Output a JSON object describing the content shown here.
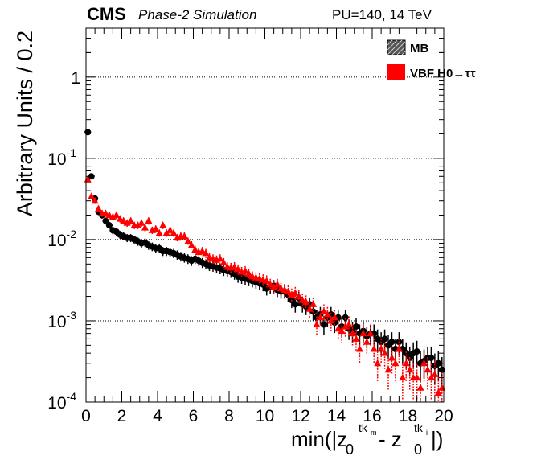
{
  "header": {
    "experiment": "CMS",
    "status": "Phase-2 Simulation",
    "conditions": "PU=140, 14 TeV"
  },
  "chart_data": {
    "type": "scatter",
    "title": "",
    "xlabel": "min(|z0tkm - z0tki|)",
    "ylabel": "Arbitrary Units / 0.2",
    "xlim": [
      0,
      20
    ],
    "ylim": [
      0.0001,
      4
    ],
    "yscale": "log",
    "grid": "horizontal dotted at decades",
    "legend_position": "top-right",
    "x_ticks": [
      "0",
      "2",
      "4",
      "6",
      "8",
      "10",
      "12",
      "14",
      "16",
      "18",
      "20"
    ],
    "y_ticks": [
      {
        "value": 0.0001,
        "base": "10",
        "exp": "-4"
      },
      {
        "value": 0.001,
        "base": "10",
        "exp": "-3"
      },
      {
        "value": 0.01,
        "base": "10",
        "exp": "-2"
      },
      {
        "value": 0.1,
        "base": "10",
        "exp": "-1"
      },
      {
        "value": 1,
        "base": "1",
        "exp": ""
      }
    ],
    "series": [
      {
        "name": "MB",
        "marker": "circle",
        "color": "#000000",
        "x": [
          0.1,
          0.3,
          0.5,
          0.7,
          0.9,
          1.1,
          1.3,
          1.5,
          1.7,
          1.9,
          2.1,
          2.3,
          2.5,
          2.7,
          2.9,
          3.1,
          3.3,
          3.5,
          3.7,
          3.9,
          4.1,
          4.3,
          4.5,
          4.7,
          4.9,
          5.1,
          5.3,
          5.5,
          5.7,
          5.9,
          6.1,
          6.3,
          6.5,
          6.7,
          6.9,
          7.1,
          7.3,
          7.5,
          7.7,
          7.9,
          8.1,
          8.3,
          8.5,
          8.7,
          8.9,
          9.1,
          9.3,
          9.5,
          9.7,
          9.9,
          10.1,
          10.3,
          10.5,
          10.7,
          10.9,
          11.1,
          11.3,
          11.5,
          11.7,
          11.9,
          12.1,
          12.3,
          12.5,
          12.7,
          12.9,
          13.1,
          13.3,
          13.5,
          13.7,
          13.9,
          14.1,
          14.3,
          14.5,
          14.7,
          14.9,
          15.1,
          15.3,
          15.5,
          15.7,
          15.9,
          16.1,
          16.3,
          16.5,
          16.7,
          16.9,
          17.1,
          17.3,
          17.5,
          17.7,
          17.9,
          18.1,
          18.3,
          18.5,
          18.7,
          18.9,
          19.1,
          19.3,
          19.5,
          19.7,
          19.9
        ],
        "y": [
          0.21,
          0.06,
          0.032,
          0.022,
          0.02,
          0.017,
          0.015,
          0.013,
          0.0125,
          0.0115,
          0.011,
          0.0105,
          0.0105,
          0.01,
          0.0095,
          0.009,
          0.0092,
          0.0085,
          0.0082,
          0.0078,
          0.0078,
          0.0072,
          0.0072,
          0.007,
          0.0068,
          0.0065,
          0.0062,
          0.006,
          0.0058,
          0.0055,
          0.0058,
          0.0055,
          0.0052,
          0.005,
          0.0048,
          0.0047,
          0.0045,
          0.0044,
          0.0042,
          0.0041,
          0.004,
          0.0038,
          0.0035,
          0.0034,
          0.0033,
          0.0032,
          0.0031,
          0.003,
          0.0029,
          0.0028,
          0.0025,
          0.0026,
          0.0027,
          0.0024,
          0.0023,
          0.0023,
          0.0021,
          0.0018,
          0.0016,
          0.0019,
          0.0016,
          0.0015,
          0.0016,
          0.0013,
          0.0011,
          0.0012,
          0.0009,
          0.0011,
          0.0012,
          0.00095,
          0.0011,
          0.00085,
          0.0011,
          0.0008,
          0.00075,
          0.00085,
          0.0007,
          0.00075,
          0.00065,
          0.0007,
          0.0007,
          0.0006,
          0.00055,
          0.0006,
          0.0005,
          0.00055,
          0.00045,
          0.00055,
          0.00045,
          0.0004,
          0.00035,
          0.0004,
          0.00042,
          0.0003,
          0.00032,
          0.00035,
          0.00035,
          0.00028,
          0.0003,
          0.00025
        ]
      },
      {
        "name": "VBF H0→ττ",
        "marker": "triangle",
        "color": "#ff0000",
        "x": [
          0.1,
          0.3,
          0.5,
          0.7,
          0.9,
          1.1,
          1.3,
          1.5,
          1.7,
          1.9,
          2.1,
          2.3,
          2.5,
          2.7,
          2.9,
          3.1,
          3.3,
          3.5,
          3.7,
          3.9,
          4.1,
          4.3,
          4.5,
          4.7,
          4.9,
          5.1,
          5.3,
          5.5,
          5.7,
          5.9,
          6.1,
          6.3,
          6.5,
          6.7,
          6.9,
          7.1,
          7.3,
          7.5,
          7.7,
          7.9,
          8.1,
          8.3,
          8.5,
          8.7,
          8.9,
          9.1,
          9.3,
          9.5,
          9.7,
          9.9,
          10.1,
          10.3,
          10.5,
          10.7,
          10.9,
          11.1,
          11.3,
          11.5,
          11.7,
          11.9,
          12.1,
          12.3,
          12.5,
          12.7,
          12.9,
          13.1,
          13.3,
          13.5,
          13.7,
          13.9,
          14.1,
          14.3,
          14.5,
          14.7,
          14.9,
          15.1,
          15.3,
          15.5,
          15.7,
          15.9,
          16.1,
          16.3,
          16.5,
          16.7,
          16.9,
          17.1,
          17.3,
          17.5,
          17.7,
          17.9,
          18.1,
          18.3,
          18.5,
          18.7,
          18.9,
          19.1,
          19.3,
          19.5,
          19.7,
          19.9
        ],
        "y": [
          0.055,
          0.034,
          0.03,
          0.024,
          0.021,
          0.021,
          0.02,
          0.019,
          0.02,
          0.018,
          0.017,
          0.016,
          0.017,
          0.015,
          0.015,
          0.016,
          0.014,
          0.017,
          0.013,
          0.0135,
          0.012,
          0.015,
          0.012,
          0.013,
          0.012,
          0.0105,
          0.011,
          0.011,
          0.0095,
          0.0085,
          0.0075,
          0.007,
          0.0072,
          0.0068,
          0.006,
          0.0058,
          0.0056,
          0.0058,
          0.0052,
          0.0046,
          0.0045,
          0.0046,
          0.0043,
          0.004,
          0.0041,
          0.0038,
          0.0035,
          0.0034,
          0.0033,
          0.0032,
          0.0031,
          0.0028,
          0.0026,
          0.0028,
          0.0025,
          0.0024,
          0.0023,
          0.0021,
          0.0022,
          0.002,
          0.0018,
          0.0017,
          0.0014,
          0.0016,
          0.0009,
          0.0011,
          0.0013,
          0.0012,
          0.001,
          0.0011,
          0.0008,
          0.00075,
          0.00085,
          0.0009,
          0.0007,
          0.0006,
          0.00045,
          0.0007,
          0.00055,
          0.0007,
          0.00045,
          0.0003,
          0.00045,
          0.0004,
          0.00025,
          0.00035,
          0.0003,
          0.00045,
          0.0002,
          0.0003,
          0.00025,
          0.0002,
          0.0002,
          0.00015,
          0.0003,
          0.00025,
          0.0002,
          0.00022,
          0.00013,
          0.00015
        ]
      }
    ]
  }
}
